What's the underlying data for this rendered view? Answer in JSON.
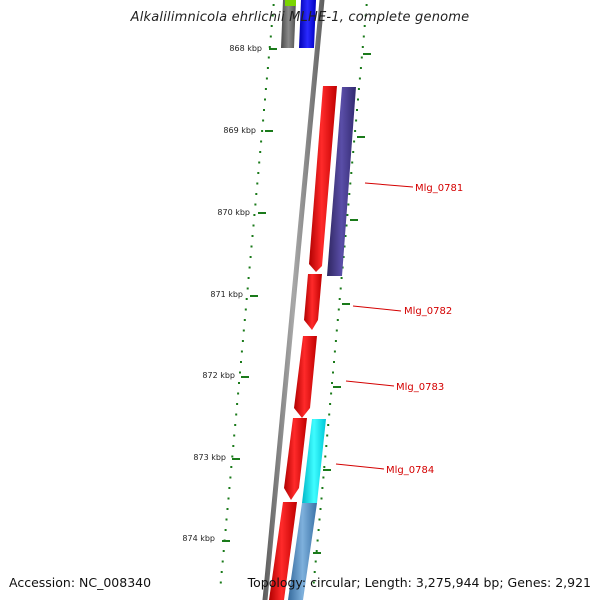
{
  "title": "Alkalilimnicola ehrlichii MLHE-1, complete genome",
  "footer": {
    "accession": "Accession: NC_008340",
    "summary": "Topology: circular; Length: 3,275,944 bp; Genes: 2,921"
  },
  "scale_labels": [
    "868 kbp",
    "869 kbp",
    "870 kbp",
    "871 kbp",
    "872 kbp",
    "873 kbp",
    "874 kbp"
  ],
  "gene_labels": [
    "Mlg_0781",
    "Mlg_0782",
    "Mlg_0783",
    "Mlg_0784"
  ],
  "colors": {
    "backbone": "#7a7a7a",
    "tick": "#1a7a1a",
    "label": "#d40000",
    "red_gene": "#ff0000",
    "purple_gene": "#4a3d8f",
    "cyan_gene": "#00e5e5",
    "steel_gene": "#4f86b8",
    "blue_gene": "#0000ee",
    "gray_gene": "#666666",
    "green_gene": "#66cc00"
  }
}
